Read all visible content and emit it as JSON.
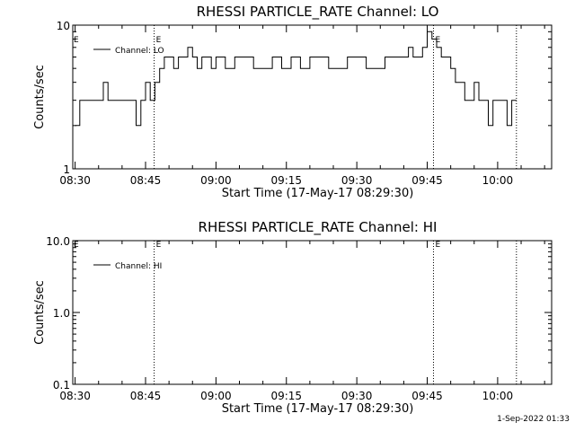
{
  "footer_stamp": "1-Sep-2022 01:33",
  "chart_data": [
    {
      "type": "line",
      "title": "RHESSI PARTICLE_RATE Channel: LO",
      "xlabel": "Start Time (17-May-17 08:29:30)",
      "ylabel": "Counts/sec",
      "yscale": "log",
      "ylim": [
        1,
        10
      ],
      "y_tick_labels": [
        {
          "v": 1,
          "t": "1"
        },
        {
          "v": 10,
          "t": "10"
        }
      ],
      "xlim": [
        "08:29:30",
        "10:11:30"
      ],
      "x_tick_labels": [
        "08:30",
        "08:45",
        "09:00",
        "09:15",
        "09:30",
        "09:45",
        "10:00"
      ],
      "legend": {
        "position": "top-left",
        "entries": [
          "Channel: LO"
        ]
      },
      "markers": [
        {
          "time": "08:46:50",
          "label": "E"
        },
        {
          "time": "09:46:20",
          "label": "E"
        },
        {
          "time": "10:04:00",
          "label": ""
        }
      ],
      "series": [
        {
          "times": [
            "08:30:00",
            "08:31:00",
            "08:32:00",
            "08:33:00",
            "08:34:00",
            "08:35:00",
            "08:36:00",
            "08:37:00",
            "08:38:00",
            "08:39:00",
            "08:40:00",
            "08:41:00",
            "08:42:00",
            "08:43:00",
            "08:44:00",
            "08:45:00",
            "08:46:00",
            "08:47:00",
            "08:48:00",
            "08:49:00",
            "08:50:00",
            "08:51:00",
            "08:52:00",
            "08:53:00",
            "08:54:00",
            "08:55:00",
            "08:56:00",
            "08:57:00",
            "08:58:00",
            "08:59:00",
            "09:00:00",
            "09:02:00",
            "09:04:00",
            "09:06:00",
            "09:08:00",
            "09:10:00",
            "09:12:00",
            "09:14:00",
            "09:16:00",
            "09:18:00",
            "09:20:00",
            "09:22:00",
            "09:24:00",
            "09:26:00",
            "09:28:00",
            "09:30:00",
            "09:32:00",
            "09:34:00",
            "09:36:00",
            "09:38:00",
            "09:40:00",
            "09:41:00",
            "09:42:00",
            "09:43:00",
            "09:44:00",
            "09:45:00",
            "09:46:00",
            "09:47:00",
            "09:48:00",
            "09:49:00",
            "09:50:00",
            "09:51:00",
            "09:52:00",
            "09:53:00",
            "09:54:00",
            "09:55:00",
            "09:56:00",
            "09:57:00",
            "09:58:00",
            "09:59:00",
            "10:00:00",
            "10:01:00",
            "10:02:00",
            "10:03:00"
          ],
          "values": [
            2,
            3,
            3,
            3,
            3,
            3,
            4,
            3,
            3,
            3,
            3,
            3,
            3,
            2,
            3,
            4,
            3,
            4,
            5,
            6,
            6,
            5,
            6,
            6,
            7,
            6,
            5,
            6,
            6,
            5,
            6,
            5,
            6,
            6,
            5,
            5,
            6,
            5,
            6,
            5,
            6,
            6,
            5,
            5,
            6,
            6,
            5,
            5,
            6,
            6,
            6,
            7,
            6,
            6,
            7,
            9,
            8,
            7,
            6,
            6,
            5,
            4,
            4,
            3,
            3,
            4,
            3,
            3,
            2,
            3,
            3,
            3,
            2,
            3
          ]
        }
      ]
    },
    {
      "type": "line",
      "title": "RHESSI PARTICLE_RATE Channel: HI",
      "xlabel": "Start Time (17-May-17 08:29:30)",
      "ylabel": "Counts/sec",
      "yscale": "log",
      "ylim": [
        0.1,
        10
      ],
      "y_tick_labels": [
        {
          "v": 0.1,
          "t": "0.1"
        },
        {
          "v": 1,
          "t": "1.0"
        },
        {
          "v": 10,
          "t": "10.0"
        }
      ],
      "xlim": [
        "08:29:30",
        "10:11:30"
      ],
      "x_tick_labels": [
        "08:30",
        "08:45",
        "09:00",
        "09:15",
        "09:30",
        "09:45",
        "10:00"
      ],
      "legend": {
        "position": "top-left",
        "entries": [
          "Channel: HI"
        ]
      },
      "markers": [
        {
          "time": "08:46:50",
          "label": "E"
        },
        {
          "time": "09:46:20",
          "label": "E"
        },
        {
          "time": "10:04:00",
          "label": ""
        }
      ],
      "series": [
        {
          "times": [],
          "values": []
        }
      ]
    }
  ]
}
